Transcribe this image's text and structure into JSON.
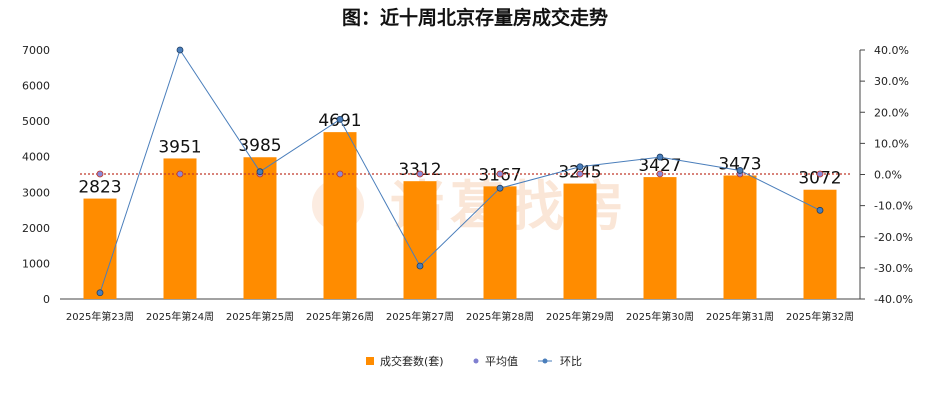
{
  "chart_data": {
    "type": "bar",
    "title": "图：近十周北京存量房成交走势",
    "categories": [
      "2025年第23周",
      "2025年第24周",
      "2025年第25周",
      "2025年第26周",
      "2025年第27周",
      "2025年第28周",
      "2025年第29周",
      "2025年第30周",
      "2025年第31周",
      "2025年第32周"
    ],
    "series": [
      {
        "name": "成交套数(套)",
        "type": "bar",
        "axis": "left",
        "color": "#ff8c00",
        "values": [
          2823,
          3951,
          3985,
          4691,
          3312,
          3167,
          3245,
          3427,
          3473,
          3072
        ]
      },
      {
        "name": "平均值",
        "type": "dotted-line",
        "axis": "left",
        "color": "#c0392b",
        "values": [
          3515,
          3515,
          3515,
          3515,
          3515,
          3515,
          3515,
          3515,
          3515,
          3515
        ]
      },
      {
        "name": "环比",
        "type": "line",
        "axis": "right",
        "color": "#4a7ebb",
        "values": [
          -0.38,
          0.4,
          0.009,
          0.177,
          -0.294,
          -0.044,
          0.025,
          0.056,
          0.013,
          -0.115
        ]
      }
    ],
    "ylim_left": [
      0,
      7000
    ],
    "yticks_left": [
      "0",
      "1000",
      "2000",
      "3000",
      "4000",
      "5000",
      "6000",
      "7000"
    ],
    "ylim_right": [
      -0.4,
      0.4
    ],
    "yticks_right": [
      "-40.0%",
      "-30.0%",
      "-20.0%",
      "-10.0%",
      "0.0%",
      "10.0%",
      "20.0%",
      "30.0%",
      "40.0%"
    ],
    "data_labels": [
      "2823",
      "3951",
      "3985",
      "4691",
      "3312",
      "3167",
      "3245",
      "3427",
      "3473",
      "3072"
    ],
    "legend": [
      "成交套数(套)",
      "平均值",
      "环比"
    ],
    "legend_position": "bottom",
    "grid": false
  },
  "watermark_text": "诸葛找房"
}
